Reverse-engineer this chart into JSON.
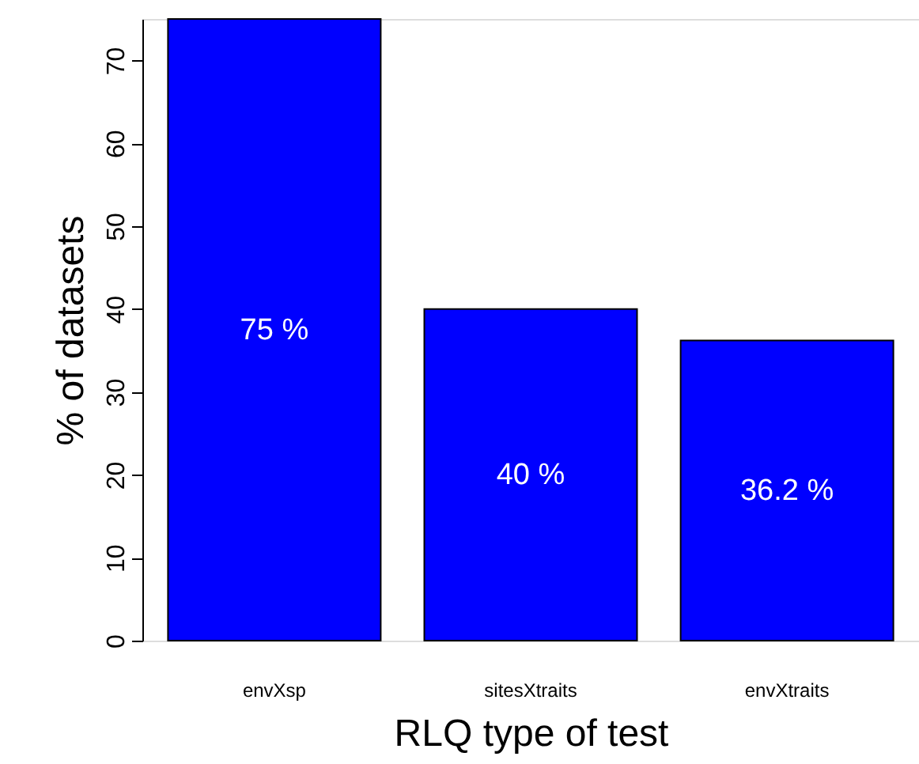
{
  "chart_data": {
    "type": "bar",
    "xlabel": "RLQ type of test",
    "ylabel": "% of datasets",
    "categories": [
      "envXsp",
      "sitesXtraits",
      "envXtraits"
    ],
    "values": [
      75,
      40,
      36.2
    ],
    "value_labels": [
      "75 %",
      "40 %",
      "36.2 %"
    ],
    "color": "#0000ff",
    "ylim": [
      0,
      75
    ],
    "yticks": [
      0,
      10,
      20,
      30,
      40,
      50,
      60,
      70
    ],
    "grid": false
  }
}
